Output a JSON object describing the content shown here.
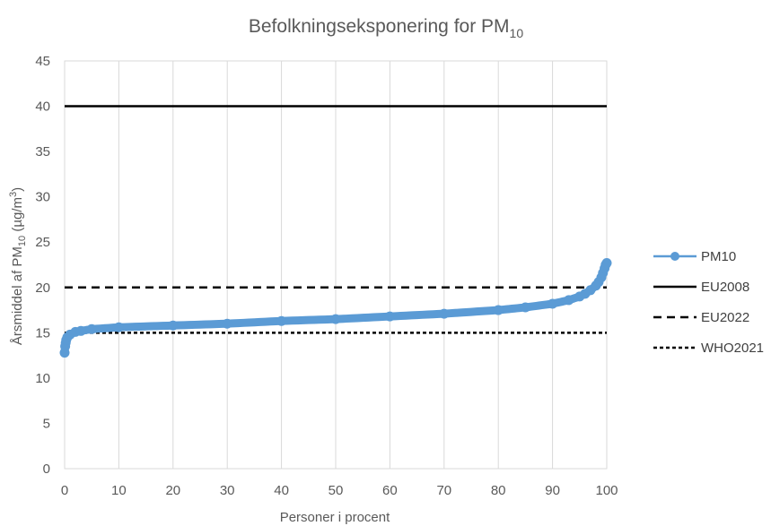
{
  "chart_data": {
    "type": "scatter",
    "title": {
      "main": "Befolkningseksponering for PM",
      "sub": "10"
    },
    "xlabel": "Personer i procent",
    "ylabel": {
      "pre": "Årsmiddel af PM",
      "sub": "10",
      "post": " (µg/m",
      "sup": "3",
      "end": ")"
    },
    "xlim": [
      0,
      100
    ],
    "ylim": [
      0,
      45
    ],
    "xticks": [
      0,
      10,
      20,
      30,
      40,
      50,
      60,
      70,
      80,
      90,
      100
    ],
    "yticks": [
      0,
      5,
      10,
      15,
      20,
      25,
      30,
      35,
      40,
      45
    ],
    "grid": "vertical",
    "legend_position": "right",
    "series": [
      {
        "name": "PM10",
        "style": "markers-line",
        "color": "#5B9BD5",
        "x": [
          0,
          0.1,
          0.2,
          0.3,
          0.5,
          1,
          2,
          3,
          5,
          10,
          20,
          30,
          40,
          50,
          60,
          70,
          80,
          85,
          90,
          93,
          95,
          96,
          97,
          98,
          98.5,
          99,
          99.3,
          99.6,
          99.8,
          100
        ],
        "y": [
          12.8,
          13.5,
          13.9,
          14.2,
          14.5,
          14.8,
          15.1,
          15.2,
          15.4,
          15.6,
          15.8,
          16.0,
          16.3,
          16.5,
          16.8,
          17.1,
          17.5,
          17.8,
          18.2,
          18.6,
          19.0,
          19.3,
          19.7,
          20.2,
          20.6,
          21.1,
          21.6,
          22.1,
          22.5,
          22.7
        ]
      },
      {
        "name": "EU2008",
        "style": "solid",
        "color": "#000000",
        "y_constant": 40
      },
      {
        "name": "EU2022",
        "style": "dashed",
        "color": "#000000",
        "y_constant": 20
      },
      {
        "name": "WHO2021",
        "style": "dotted",
        "color": "#000000",
        "y_constant": 15
      }
    ]
  }
}
